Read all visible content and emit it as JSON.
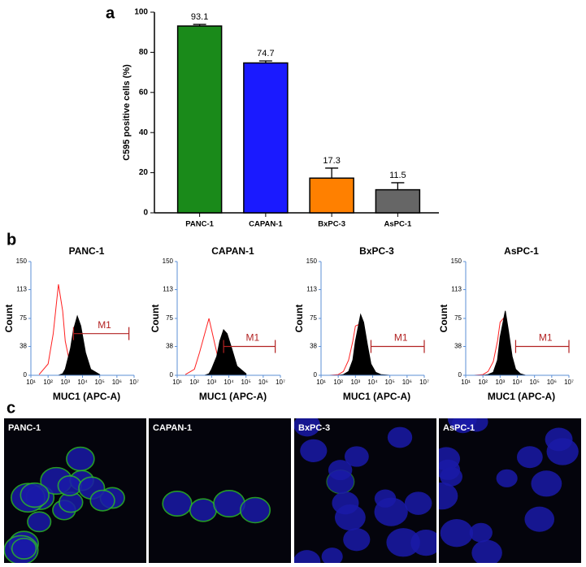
{
  "panel_labels": [
    "a",
    "b",
    "c"
  ],
  "chart_data": [
    {
      "type": "bar",
      "ylabel": "C595 positive cells (%)",
      "categories": [
        "PANC-1",
        "CAPAN-1",
        "BxPC-3",
        "AsPC-1"
      ],
      "values": [
        93.1,
        74.7,
        17.3,
        11.5
      ],
      "errors": [
        0.8,
        1,
        5,
        3.5
      ],
      "colors": [
        "#1a8a1a",
        "#1a1aff",
        "#ff8000",
        "#666666"
      ],
      "ylim": [
        0,
        100
      ],
      "yticks": [
        0,
        20,
        40,
        60,
        80,
        100
      ]
    },
    {
      "type": "area",
      "title": "PANC-1",
      "ylabel": "Count",
      "xlabel": "MUC1 (APC-A)",
      "log_x": true,
      "x": [
        30,
        100,
        200,
        400,
        700,
        1000,
        2000,
        3000,
        5000,
        8000,
        15000,
        30000,
        100000
      ],
      "series": [
        {
          "color": "#ff2020",
          "style": "outline",
          "values": [
            1,
            15,
            55,
            120,
            85,
            45,
            12,
            3,
            1,
            0,
            0,
            0,
            0
          ]
        },
        {
          "color": "#000000",
          "style": "filled",
          "values": [
            0,
            0,
            0,
            0,
            2,
            8,
            35,
            60,
            78,
            65,
            30,
            8,
            1
          ]
        }
      ],
      "gate": {
        "label": "M1",
        "range": [
          3000,
          5000000
        ],
        "level": 55,
        "color": "#b22222"
      },
      "xlim": [
        10,
        10000000
      ],
      "xticks": [
        {
          "value": 10,
          "label": "10¹"
        },
        {
          "value": 100,
          "label": "10²"
        },
        {
          "value": 1000,
          "label": "10³"
        },
        {
          "value": 10000,
          "label": "10⁴"
        },
        {
          "value": 100000,
          "label": "10⁵"
        },
        {
          "value": 1000000,
          "label": "10⁶"
        },
        {
          "value": 10000000,
          "label": "10⁷"
        }
      ],
      "ylim": [
        0,
        150
      ],
      "yticks": [
        0,
        38,
        75,
        113,
        150
      ]
    },
    {
      "type": "area",
      "title": "CAPAN-1",
      "ylabel": "Count",
      "xlabel": "MUC1 (APC-A)",
      "log_x": true,
      "x": [
        30,
        100,
        200,
        400,
        700,
        1000,
        2000,
        3000,
        5000,
        8000,
        15000,
        30000,
        100000
      ],
      "series": [
        {
          "color": "#ff2020",
          "style": "outline",
          "values": [
            1,
            8,
            30,
            55,
            75,
            60,
            30,
            15,
            5,
            2,
            0,
            0,
            0
          ]
        },
        {
          "color": "#000000",
          "style": "filled",
          "values": [
            0,
            0,
            0,
            0,
            2,
            8,
            25,
            45,
            60,
            55,
            35,
            12,
            2
          ]
        }
      ],
      "gate": {
        "label": "M1",
        "range": [
          5000,
          5000000
        ],
        "level": 38,
        "color": "#b22222"
      },
      "xlim": [
        10,
        10000000
      ],
      "xticks": [
        {
          "value": 10,
          "label": "10¹"
        },
        {
          "value": 100,
          "label": "10²"
        },
        {
          "value": 1000,
          "label": "10³"
        },
        {
          "value": 10000,
          "label": "10⁴"
        },
        {
          "value": 100000,
          "label": "10⁵"
        },
        {
          "value": 1000000,
          "label": "10⁶"
        },
        {
          "value": 10000000,
          "label": "10⁷"
        }
      ],
      "ylim": [
        0,
        150
      ],
      "yticks": [
        0,
        38,
        75,
        113,
        150
      ]
    },
    {
      "type": "area",
      "title": "BxPC-3",
      "ylabel": "Count",
      "xlabel": "MUC1 (APC-A)",
      "log_x": true,
      "x": [
        30,
        100,
        200,
        400,
        700,
        1000,
        2000,
        3000,
        5000,
        8000,
        15000,
        30000,
        100000
      ],
      "series": [
        {
          "color": "#ff2020",
          "style": "outline",
          "values": [
            0,
            1,
            5,
            20,
            45,
            65,
            68,
            45,
            20,
            5,
            1,
            0,
            0
          ]
        },
        {
          "color": "#000000",
          "style": "filled",
          "values": [
            0,
            0,
            1,
            5,
            20,
            45,
            80,
            70,
            40,
            15,
            4,
            1,
            0
          ]
        }
      ],
      "gate": {
        "label": "M1",
        "range": [
          8000,
          10000000
        ],
        "level": 38,
        "color": "#b22222"
      },
      "xlim": [
        10,
        10000000
      ],
      "xticks": [
        {
          "value": 10,
          "label": "10¹"
        },
        {
          "value": 100,
          "label": "10²"
        },
        {
          "value": 1000,
          "label": "10³"
        },
        {
          "value": 10000,
          "label": "10⁴"
        },
        {
          "value": 100000,
          "label": "10⁵"
        },
        {
          "value": 1000000,
          "label": "10⁶"
        },
        {
          "value": 10000000,
          "label": "10⁷"
        }
      ],
      "ylim": [
        0,
        150
      ],
      "yticks": [
        0,
        38,
        75,
        113,
        150
      ]
    },
    {
      "type": "area",
      "title": "AsPC-1",
      "ylabel": "Count",
      "xlabel": "MUC1 (APC-A)",
      "log_x": true,
      "x": [
        30,
        100,
        200,
        400,
        700,
        1000,
        2000,
        3000,
        5000,
        8000,
        15000,
        30000,
        100000
      ],
      "series": [
        {
          "color": "#ff2020",
          "style": "outline",
          "values": [
            0,
            1,
            5,
            18,
            45,
            70,
            78,
            50,
            20,
            6,
            1,
            0,
            0
          ]
        },
        {
          "color": "#000000",
          "style": "filled",
          "values": [
            0,
            0,
            1,
            4,
            20,
            50,
            85,
            60,
            25,
            8,
            2,
            0,
            0
          ]
        }
      ],
      "gate": {
        "label": "M1",
        "range": [
          8000,
          10000000
        ],
        "level": 38,
        "color": "#b22222"
      },
      "xlim": [
        10,
        10000000
      ],
      "xticks": [
        {
          "value": 10,
          "label": "10¹"
        },
        {
          "value": 100,
          "label": "10²"
        },
        {
          "value": 1000,
          "label": "10³"
        },
        {
          "value": 10000,
          "label": "10⁴"
        },
        {
          "value": 100000,
          "label": "10⁵"
        },
        {
          "value": 1000000,
          "label": "10⁶"
        },
        {
          "value": 10000000,
          "label": "10⁷"
        }
      ],
      "ylim": [
        0,
        150
      ],
      "yticks": [
        0,
        38,
        75,
        113,
        150
      ]
    }
  ],
  "images": [
    "PANC-1",
    "CAPAN-1",
    "BxPC-3",
    "AsPC-1"
  ]
}
